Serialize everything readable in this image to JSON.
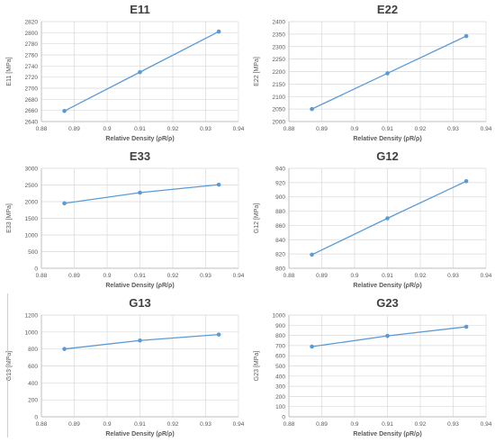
{
  "page": {
    "colors": {
      "line": "#5b9bd5",
      "grid": "#d9d9d9",
      "axis": "#bfbfbf",
      "text": "#595959",
      "title": "#404040"
    }
  },
  "chart_data": [
    {
      "id": "e11",
      "type": "line",
      "title": "E11",
      "xlabel": "Relative Density (ρR/ρ)",
      "ylabel": "E11 [MPa]",
      "x": [
        0.887,
        0.91,
        0.934
      ],
      "y": [
        2659,
        2729,
        2802
      ],
      "xlim": [
        0.88,
        0.94
      ],
      "ylim": [
        2640,
        2820
      ],
      "xticks": [
        "0.88",
        "0.89",
        "0.9",
        "0.91",
        "0.92",
        "0.93",
        "0.94"
      ],
      "yticks": [
        "2640",
        "2660",
        "2680",
        "2700",
        "2720",
        "2740",
        "2760",
        "2780",
        "2800",
        "2820"
      ],
      "grid": true,
      "legend": "none"
    },
    {
      "id": "e22",
      "type": "line",
      "title": "E22",
      "xlabel": "Relative Density (ρR/ρ)",
      "ylabel": "E22 [MPa]",
      "x": [
        0.887,
        0.91,
        0.934
      ],
      "y": [
        2050,
        2193,
        2342
      ],
      "xlim": [
        0.88,
        0.94
      ],
      "ylim": [
        2000,
        2400
      ],
      "xticks": [
        "0.88",
        "0.89",
        "0.9",
        "0.91",
        "0.92",
        "0.93",
        "0.94"
      ],
      "yticks": [
        "2000",
        "2050",
        "2100",
        "2150",
        "2200",
        "2250",
        "2300",
        "2350",
        "2400"
      ],
      "grid": true,
      "legend": "none"
    },
    {
      "id": "e33",
      "type": "line",
      "title": "E33",
      "xlabel": "Relative Density (ρR/ρ)",
      "ylabel": "E33 [MPa]",
      "x": [
        0.887,
        0.91,
        0.934
      ],
      "y": [
        1950,
        2270,
        2510
      ],
      "xlim": [
        0.88,
        0.94
      ],
      "ylim": [
        0,
        3000
      ],
      "xticks": [
        "0.88",
        "0.89",
        "0.9",
        "0.91",
        "0.92",
        "0.93",
        "0.94"
      ],
      "yticks": [
        "0",
        "500",
        "1000",
        "1500",
        "2000",
        "2500",
        "3000"
      ],
      "grid": true,
      "legend": "none"
    },
    {
      "id": "g12",
      "type": "line",
      "title": "G12",
      "xlabel": "Relative Density (ρR/ρ)",
      "ylabel": "G12 [MPa]",
      "x": [
        0.887,
        0.91,
        0.934
      ],
      "y": [
        819,
        870,
        922
      ],
      "xlim": [
        0.88,
        0.94
      ],
      "ylim": [
        800,
        940
      ],
      "xticks": [
        "0.88",
        "0.89",
        "0.9",
        "0.91",
        "0.92",
        "0.93",
        "0.94"
      ],
      "yticks": [
        "800",
        "820",
        "840",
        "860",
        "880",
        "900",
        "920",
        "940"
      ],
      "grid": true,
      "legend": "none"
    },
    {
      "id": "g13",
      "type": "line",
      "title": "G13",
      "xlabel": "Relative Density (ρR/ρ)",
      "ylabel": "G13 [MPa]",
      "x": [
        0.887,
        0.91,
        0.934
      ],
      "y": [
        800,
        900,
        970
      ],
      "xlim": [
        0.88,
        0.94
      ],
      "ylim": [
        0,
        1200
      ],
      "xticks": [
        "0.88",
        "0.89",
        "0.9",
        "0.91",
        "0.92",
        "0.93",
        "0.94"
      ],
      "yticks": [
        "0",
        "200",
        "400",
        "600",
        "800",
        "1000",
        "1200"
      ],
      "grid": true,
      "legend": "none"
    },
    {
      "id": "g23",
      "type": "line",
      "title": "G23",
      "xlabel": "Relative Density (ρR/ρ)",
      "ylabel": "G23 [MPa]",
      "x": [
        0.887,
        0.91,
        0.934
      ],
      "y": [
        690,
        795,
        885
      ],
      "xlim": [
        0.88,
        0.94
      ],
      "ylim": [
        0,
        1000
      ],
      "xticks": [
        "0.88",
        "0.89",
        "0.9",
        "0.91",
        "0.92",
        "0.93",
        "0.94"
      ],
      "yticks": [
        "0",
        "100",
        "200",
        "300",
        "400",
        "500",
        "600",
        "700",
        "800",
        "900",
        "1000"
      ],
      "grid": true,
      "legend": "none"
    }
  ]
}
